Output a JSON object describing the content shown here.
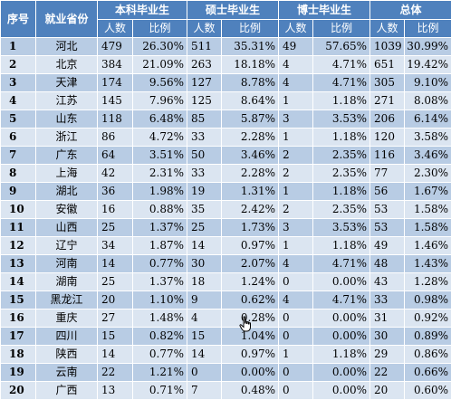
{
  "headers": {
    "index": "序号",
    "province": "就业省份",
    "groups": [
      "本科毕业生",
      "硕士毕业生",
      "博士毕业生",
      "总体"
    ],
    "sub": [
      "人数",
      "比例",
      "人数",
      "比例",
      "人数",
      "比例",
      "人数",
      "比例"
    ]
  },
  "rows": [
    {
      "idx": "1",
      "prov": "河北",
      "v": [
        "479",
        "26.30%",
        "511",
        "35.31%",
        "49",
        "57.65%",
        "1039",
        "30.99%"
      ]
    },
    {
      "idx": "2",
      "prov": "北京",
      "v": [
        "384",
        "21.09%",
        "263",
        "18.18%",
        "4",
        "4.71%",
        "651",
        "19.42%"
      ]
    },
    {
      "idx": "3",
      "prov": "天津",
      "v": [
        "174",
        "9.56%",
        "127",
        "8.78%",
        "4",
        "4.71%",
        "305",
        "9.10%"
      ]
    },
    {
      "idx": "4",
      "prov": "江苏",
      "v": [
        "145",
        "7.96%",
        "125",
        "8.64%",
        "1",
        "1.18%",
        "271",
        "8.08%"
      ]
    },
    {
      "idx": "5",
      "prov": "山东",
      "v": [
        "118",
        "6.48%",
        "85",
        "5.87%",
        "3",
        "3.53%",
        "206",
        "6.14%"
      ]
    },
    {
      "idx": "6",
      "prov": "浙江",
      "v": [
        "86",
        "4.72%",
        "33",
        "2.28%",
        "1",
        "1.18%",
        "120",
        "3.58%"
      ]
    },
    {
      "idx": "7",
      "prov": "广东",
      "v": [
        "64",
        "3.51%",
        "50",
        "3.46%",
        "2",
        "2.35%",
        "116",
        "3.46%"
      ]
    },
    {
      "idx": "8",
      "prov": "上海",
      "v": [
        "42",
        "2.31%",
        "33",
        "2.28%",
        "2",
        "2.35%",
        "77",
        "2.30%"
      ]
    },
    {
      "idx": "9",
      "prov": "湖北",
      "v": [
        "36",
        "1.98%",
        "19",
        "1.31%",
        "1",
        "1.18%",
        "56",
        "1.67%"
      ]
    },
    {
      "idx": "10",
      "prov": "安徽",
      "v": [
        "16",
        "0.88%",
        "35",
        "2.42%",
        "2",
        "2.35%",
        "53",
        "1.58%"
      ]
    },
    {
      "idx": "11",
      "prov": "山西",
      "v": [
        "25",
        "1.37%",
        "25",
        "1.73%",
        "3",
        "3.53%",
        "53",
        "1.58%"
      ]
    },
    {
      "idx": "12",
      "prov": "辽宁",
      "v": [
        "34",
        "1.87%",
        "14",
        "0.97%",
        "1",
        "1.18%",
        "49",
        "1.46%"
      ]
    },
    {
      "idx": "13",
      "prov": "河南",
      "v": [
        "14",
        "0.77%",
        "30",
        "2.07%",
        "4",
        "4.71%",
        "48",
        "1.43%"
      ]
    },
    {
      "idx": "14",
      "prov": "湖南",
      "v": [
        "25",
        "1.37%",
        "18",
        "1.24%",
        "0",
        "0.00%",
        "43",
        "1.28%"
      ]
    },
    {
      "idx": "15",
      "prov": "黑龙江",
      "v": [
        "20",
        "1.10%",
        "9",
        "0.62%",
        "4",
        "4.71%",
        "33",
        "0.98%"
      ]
    },
    {
      "idx": "16",
      "prov": "重庆",
      "v": [
        "27",
        "1.48%",
        "4",
        "0.28%",
        "0",
        "0.00%",
        "31",
        "0.92%"
      ]
    },
    {
      "idx": "17",
      "prov": "四川",
      "v": [
        "15",
        "0.82%",
        "15",
        "1.04%",
        "0",
        "0.00%",
        "30",
        "0.89%"
      ]
    },
    {
      "idx": "18",
      "prov": "陕西",
      "v": [
        "14",
        "0.77%",
        "14",
        "0.97%",
        "1",
        "1.18%",
        "29",
        "0.86%"
      ]
    },
    {
      "idx": "19",
      "prov": "云南",
      "v": [
        "22",
        "1.21%",
        "0",
        "0.00%",
        "0",
        "0.00%",
        "22",
        "0.66%"
      ]
    },
    {
      "idx": "20",
      "prov": "广西",
      "v": [
        "13",
        "0.71%",
        "7",
        "0.48%",
        "0",
        "0.00%",
        "20",
        "0.60%"
      ]
    }
  ],
  "colors": {
    "header": "#4f81bd",
    "row_dark": "#b8cce4",
    "row_light": "#dbe5f1"
  },
  "icons": {
    "cursor": "hand-pointer-icon"
  }
}
